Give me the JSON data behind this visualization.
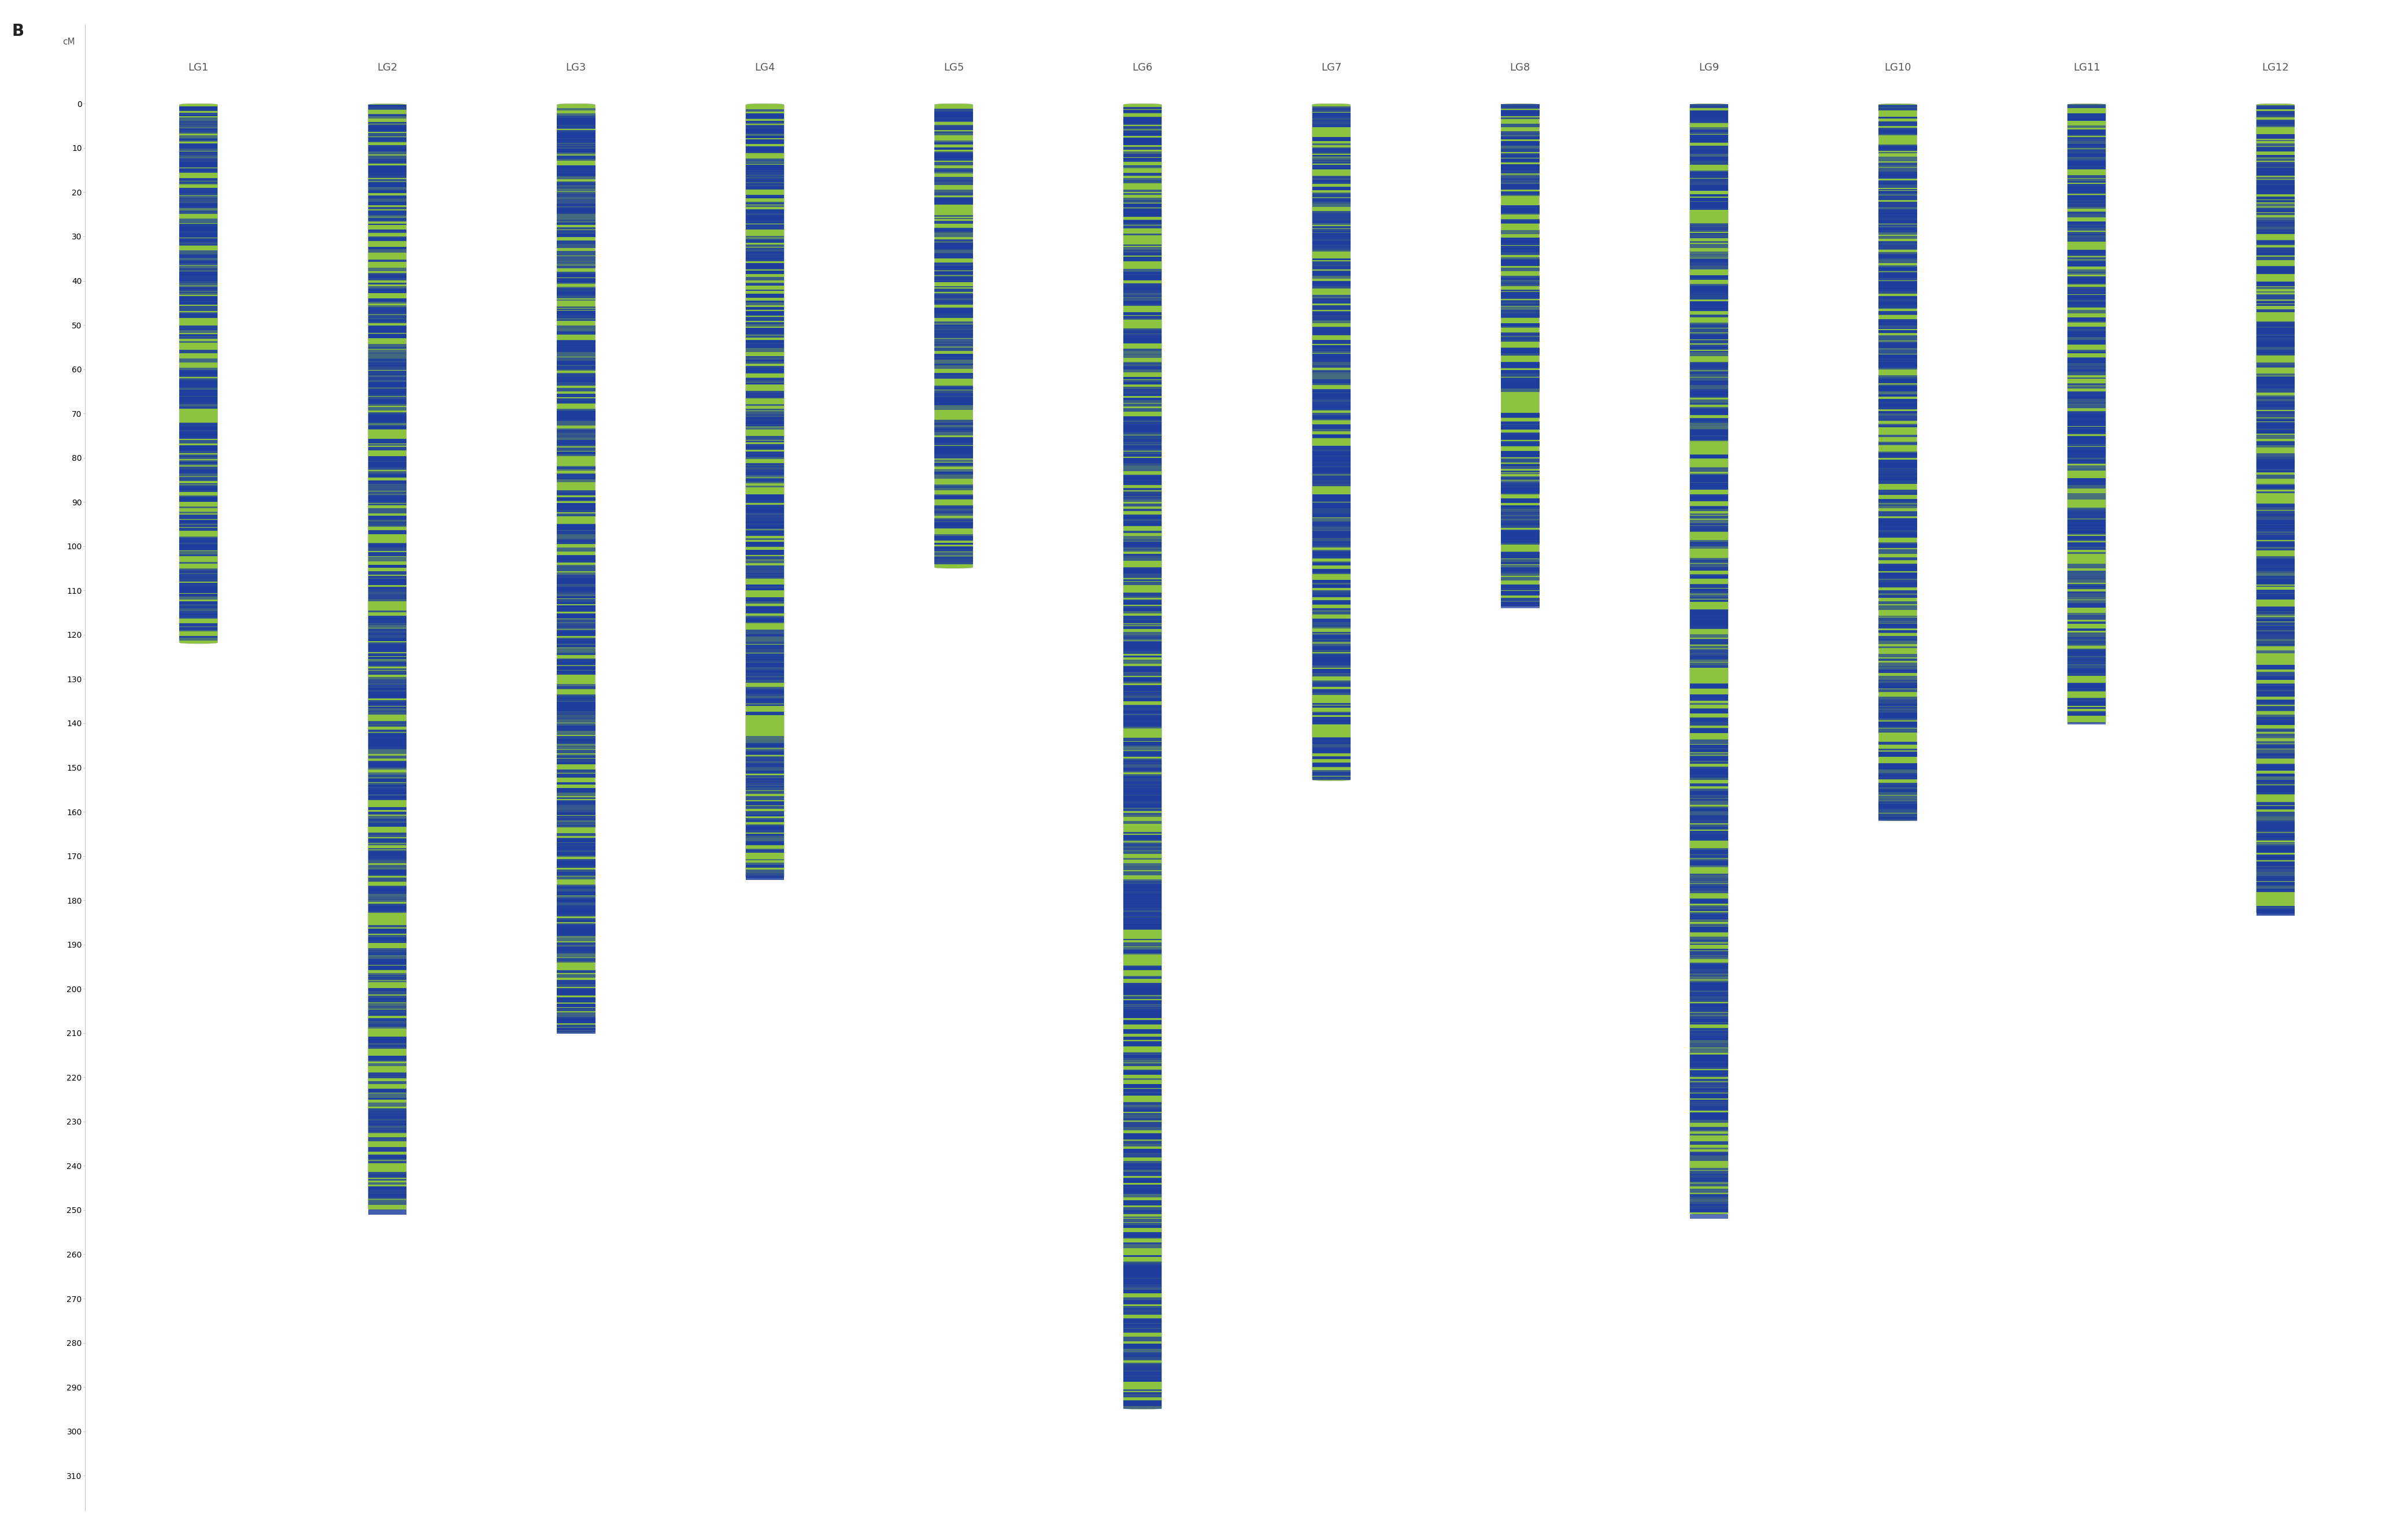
{
  "title_label": "B",
  "y_axis_label": "cM",
  "y_max": 310,
  "y_tick_interval": 10,
  "linkage_groups": [
    "LG1",
    "LG2",
    "LG3",
    "LG4",
    "LG5",
    "LG6",
    "LG7",
    "LG8",
    "LG9",
    "LG10",
    "LG11",
    "LG12"
  ],
  "lg_lengths": [
    122,
    250,
    210,
    175,
    105,
    295,
    153,
    113,
    251,
    162,
    140,
    183
  ],
  "color_green": "#8dc43f",
  "color_blue": "#1e3ea0",
  "bar_width": 0.65,
  "background_color": "#ffffff",
  "label_color": "#555555",
  "title_fontsize": 20,
  "tick_fontsize": 10,
  "lg_label_fontsize": 13,
  "fig_width": 41.65,
  "fig_height": 26.55,
  "markers_per_lg": [
    220,
    450,
    380,
    310,
    180,
    530,
    270,
    200,
    440,
    290,
    250,
    330
  ]
}
